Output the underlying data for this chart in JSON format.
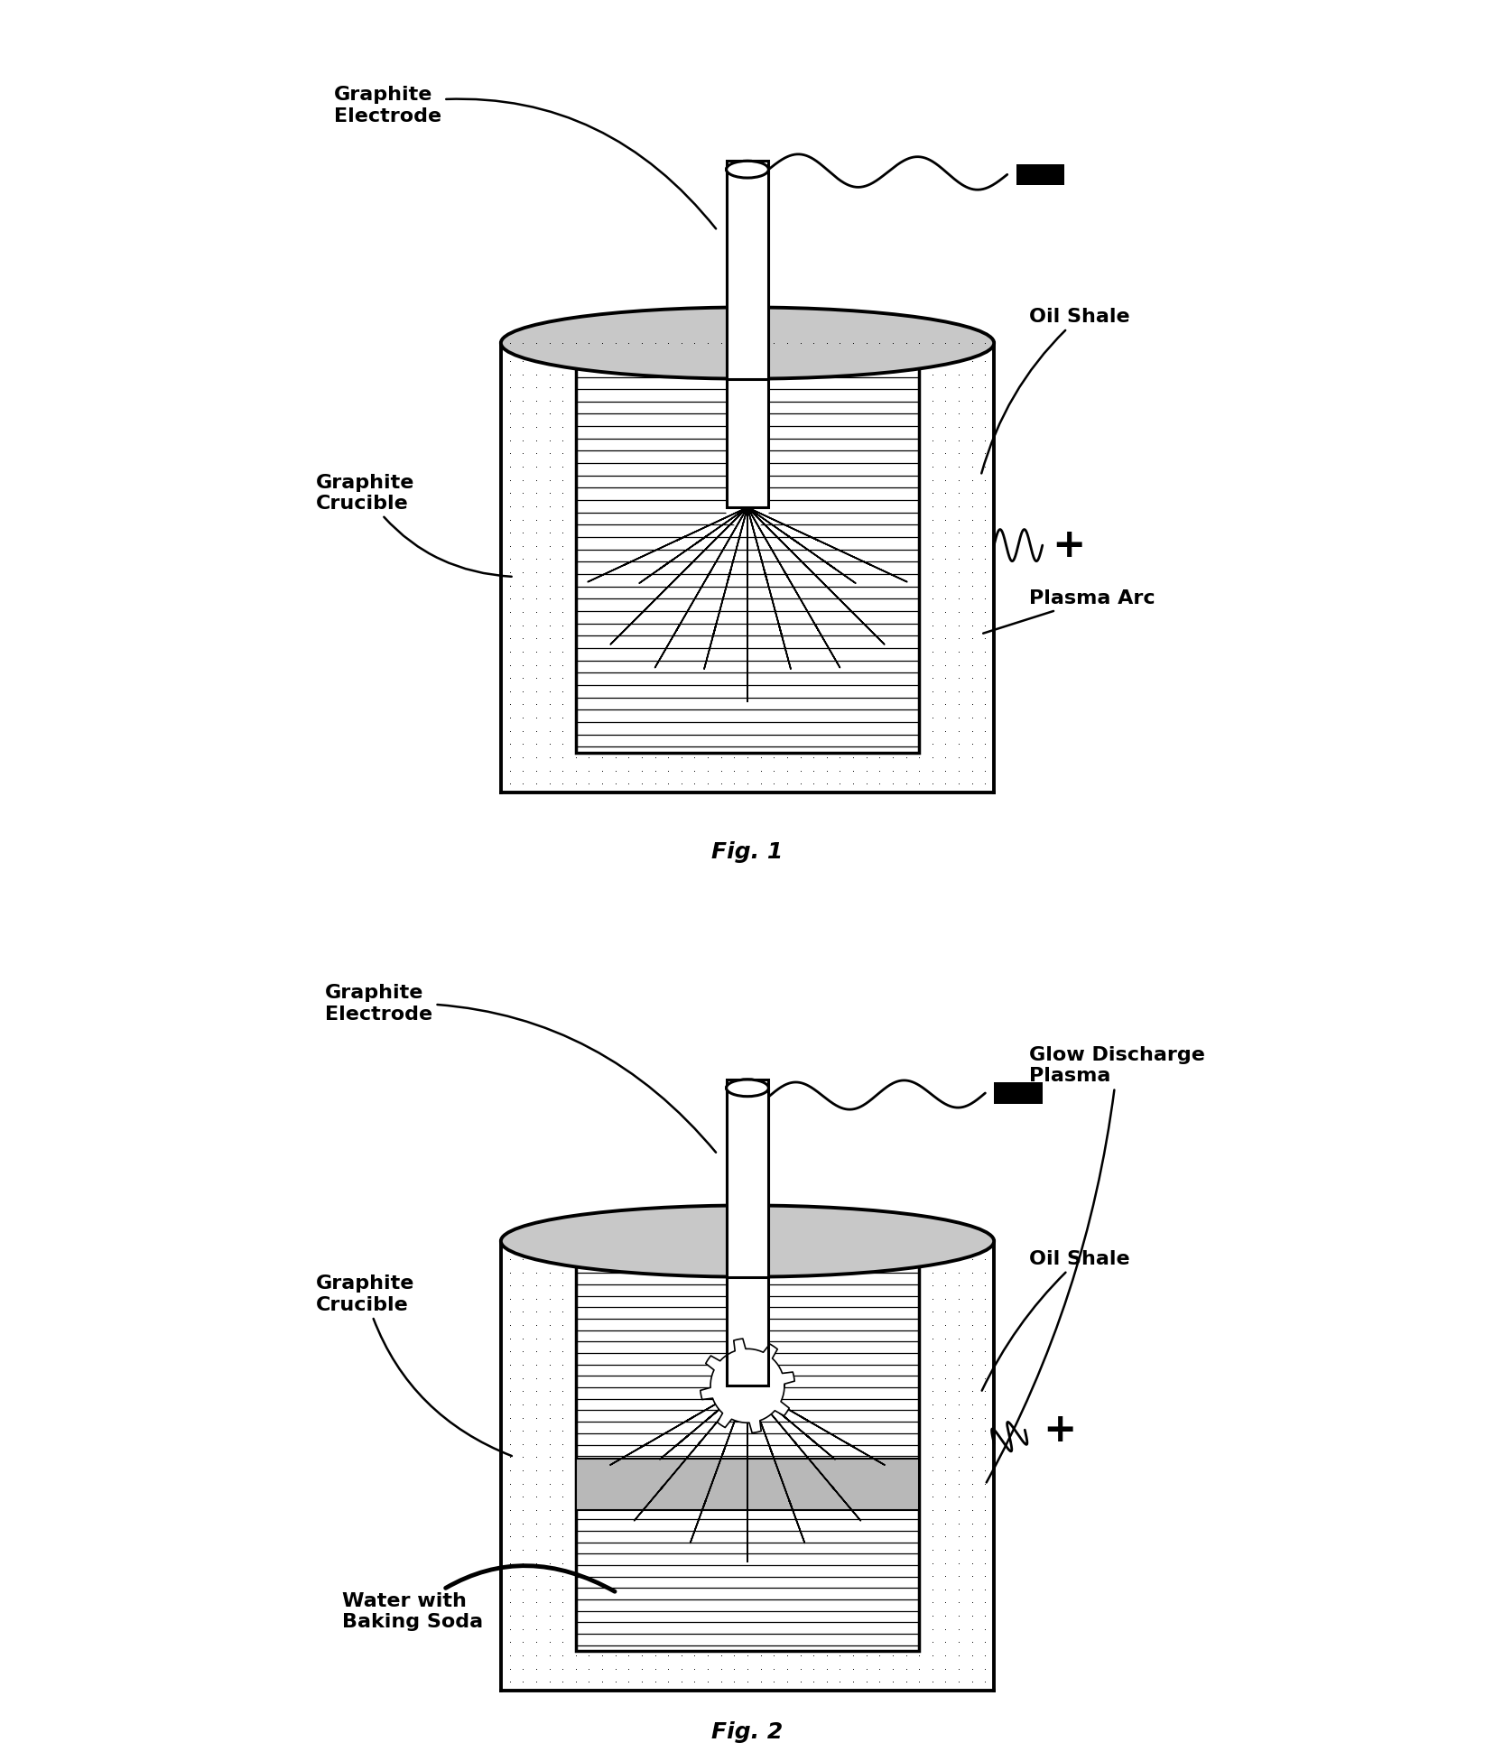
{
  "fig_width": 16.56,
  "fig_height": 19.51,
  "bg_color": "#ffffff",
  "label_fontsize": 16,
  "caption_fontsize": 18,
  "fig1": {
    "title": "Fig. 1",
    "labels": {
      "graphite_electrode": "Graphite\nElectrode",
      "graphite_crucible": "Graphite\nCrucible",
      "oil_shale": "Oil Shale",
      "plasma_arc": "Plasma Arc"
    }
  },
  "fig2": {
    "title": "Fig. 2",
    "labels": {
      "graphite_electrode": "Graphite\nElectrode",
      "graphite_crucible": "Graphite\nCrucible",
      "oil_shale": "Oil Shale",
      "glow_discharge": "Glow Discharge\nPlasma",
      "water_baking_soda": "Water with\nBaking Soda"
    }
  }
}
